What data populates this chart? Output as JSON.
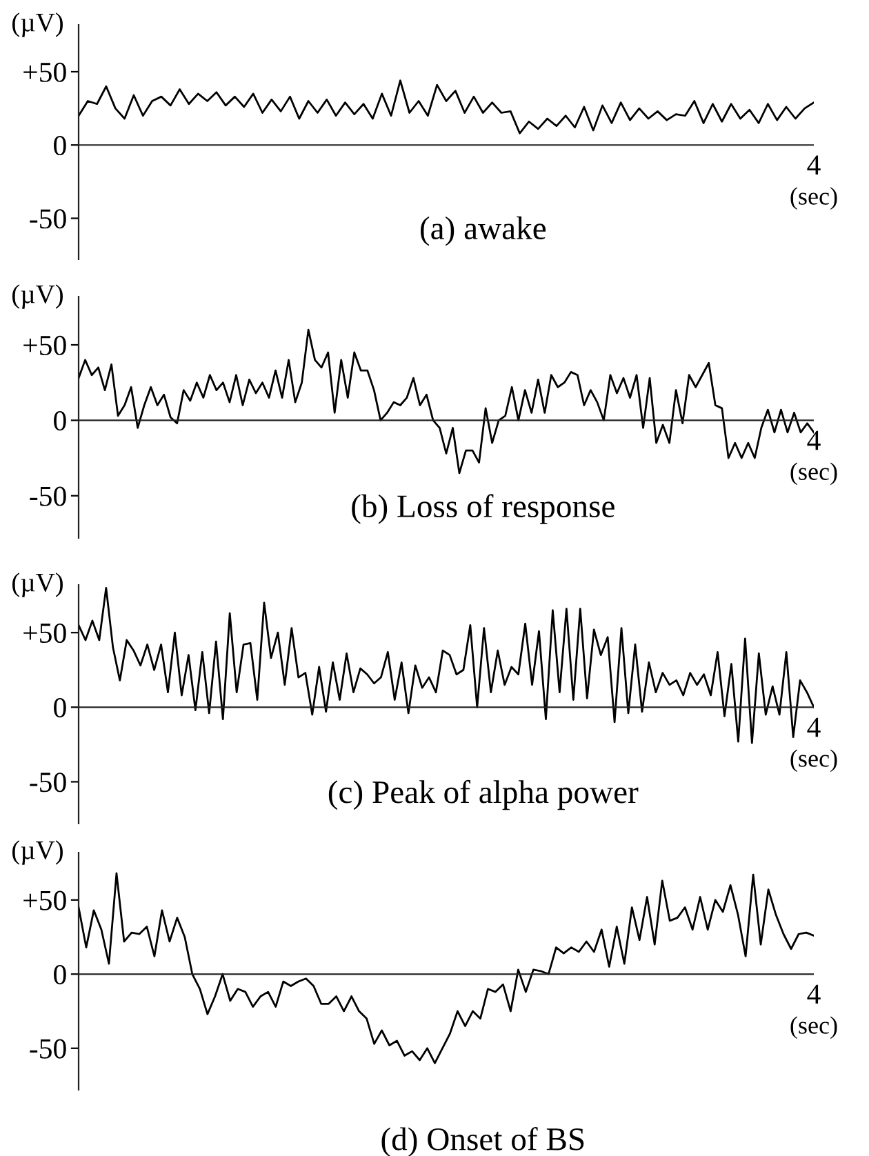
{
  "chart_data": [
    {
      "type": "line",
      "title": "(a) awake",
      "xlabel": "(sec)",
      "ylabel": "(µV)",
      "ylim": [
        -78,
        82
      ],
      "categories": [
        null,
        null,
        null,
        null,
        null,
        null,
        null,
        null,
        null,
        null,
        null,
        null,
        null,
        null,
        null,
        null,
        null,
        null,
        null,
        null,
        null,
        null,
        null,
        null,
        null,
        null,
        null,
        null,
        null,
        null,
        null,
        null,
        null,
        null,
        null,
        null,
        null,
        null,
        null,
        null,
        null,
        null,
        null,
        null,
        null,
        null,
        null,
        null,
        null,
        null,
        null,
        null,
        null,
        null,
        null,
        null,
        null,
        null,
        null,
        null,
        null,
        null,
        null,
        null,
        null,
        null,
        null,
        null,
        null,
        null,
        null,
        null,
        null,
        null,
        null,
        null,
        null,
        null,
        null,
        null,
        null
      ],
      "annotations": [
        "4"
      ],
      "ref_lines": [
        {
          "axis": "y",
          "value": 0,
          "color": "#222222"
        }
      ],
      "yticks": [
        {
          "value": 50,
          "label": "+50"
        },
        {
          "value": 0,
          "label": "0"
        },
        {
          "value": -50,
          "label": "-50"
        }
      ],
      "grid": false,
      "legend": false,
      "marker": "none",
      "line_style": "solid",
      "series": [
        {
          "color": "#000000",
          "values": [
            20,
            30,
            28,
            40,
            25,
            18,
            34,
            20,
            30,
            33,
            27,
            38,
            28,
            35,
            30,
            36,
            27,
            33,
            26,
            35,
            22,
            31,
            23,
            33,
            18,
            30,
            22,
            31,
            20,
            29,
            21,
            28,
            18,
            35,
            20,
            44,
            22,
            30,
            20,
            41,
            30,
            37,
            22,
            33,
            22,
            29,
            22,
            23,
            8,
            16,
            11,
            18,
            13,
            20,
            12,
            26,
            10,
            27,
            15,
            29,
            17,
            25,
            18,
            23,
            17,
            21,
            20,
            30,
            15,
            28,
            16,
            28,
            18,
            24,
            15,
            28,
            17,
            26,
            18,
            25,
            29
          ]
        }
      ]
    },
    {
      "type": "line",
      "title": "(b) Loss of response",
      "xlabel": "(sec)",
      "ylabel": "(µV)",
      "ylim": [
        -78,
        82
      ],
      "categories": [
        null,
        null,
        null,
        null,
        null,
        null,
        null,
        null,
        null,
        null,
        null,
        null,
        null,
        null,
        null,
        null,
        null,
        null,
        null,
        null,
        null,
        null,
        null,
        null,
        null,
        null,
        null,
        null,
        null,
        null,
        null,
        null,
        null,
        null,
        null,
        null,
        null,
        null,
        null,
        null,
        null,
        null,
        null,
        null,
        null,
        null,
        null,
        null,
        null,
        null,
        null,
        null,
        null,
        null,
        null,
        null,
        null,
        null,
        null,
        null,
        null,
        null,
        null,
        null,
        null,
        null,
        null,
        null,
        null,
        null,
        null,
        null,
        null,
        null,
        null,
        null,
        null,
        null,
        null,
        null,
        null,
        null,
        null,
        null,
        null,
        null,
        null,
        null,
        null,
        null,
        null,
        null,
        null,
        null,
        null,
        null,
        null,
        null,
        null,
        null,
        null,
        null,
        null,
        null,
        null,
        null,
        null,
        null,
        null,
        null,
        null,
        null,
        null
      ],
      "annotations": [
        "4"
      ],
      "ref_lines": [
        {
          "axis": "y",
          "value": 0,
          "color": "#222222"
        }
      ],
      "yticks": [
        {
          "value": 50,
          "label": "+50"
        },
        {
          "value": 0,
          "label": "0"
        },
        {
          "value": -50,
          "label": "-50"
        }
      ],
      "grid": false,
      "legend": false,
      "marker": "none",
      "line_style": "solid",
      "series": [
        {
          "color": "#000000",
          "values": [
            28,
            40,
            30,
            35,
            20,
            37,
            3,
            10,
            22,
            -5,
            10,
            22,
            10,
            17,
            2,
            -2,
            20,
            13,
            25,
            15,
            30,
            20,
            25,
            12,
            30,
            10,
            27,
            18,
            25,
            15,
            33,
            15,
            40,
            12,
            25,
            60,
            40,
            35,
            45,
            5,
            40,
            15,
            45,
            33,
            33,
            20,
            0,
            5,
            12,
            10,
            15,
            28,
            10,
            17,
            0,
            -5,
            -22,
            -5,
            -35,
            -20,
            -20,
            -28,
            8,
            -15,
            0,
            3,
            22,
            0,
            20,
            5,
            27,
            5,
            30,
            22,
            25,
            32,
            30,
            10,
            20,
            12,
            0,
            30,
            18,
            28,
            15,
            30,
            -5,
            28,
            -15,
            -3,
            -15,
            20,
            -2,
            30,
            22,
            30,
            38,
            10,
            8,
            -25,
            -15,
            -25,
            -15,
            -25,
            -5,
            7,
            -8,
            7,
            -8,
            5,
            -8,
            -2,
            -8
          ]
        }
      ]
    },
    {
      "type": "line",
      "title": "(c) Peak of alpha power",
      "xlabel": "(sec)",
      "ylabel": "(µV)",
      "ylim": [
        -78,
        82
      ],
      "categories": [
        null,
        null,
        null,
        null,
        null,
        null,
        null,
        null,
        null,
        null,
        null,
        null,
        null,
        null,
        null,
        null,
        null,
        null,
        null,
        null,
        null,
        null,
        null,
        null,
        null,
        null,
        null,
        null,
        null,
        null,
        null,
        null,
        null,
        null,
        null,
        null,
        null,
        null,
        null,
        null,
        null,
        null,
        null,
        null,
        null,
        null,
        null,
        null,
        null,
        null,
        null,
        null,
        null,
        null,
        null,
        null,
        null,
        null,
        null,
        null,
        null,
        null,
        null,
        null,
        null,
        null,
        null,
        null,
        null,
        null,
        null,
        null,
        null,
        null,
        null,
        null,
        null,
        null,
        null,
        null,
        null,
        null,
        null,
        null,
        null,
        null,
        null,
        null,
        null,
        null,
        null,
        null,
        null,
        null,
        null,
        null,
        null,
        null,
        null,
        null,
        null,
        null,
        null,
        null,
        null,
        null,
        null,
        null
      ],
      "annotations": [
        "4"
      ],
      "ref_lines": [
        {
          "axis": "y",
          "value": 0,
          "color": "#222222"
        }
      ],
      "yticks": [
        {
          "value": 50,
          "label": "+50"
        },
        {
          "value": 0,
          "label": "0"
        },
        {
          "value": -50,
          "label": "-50"
        }
      ],
      "grid": false,
      "legend": false,
      "marker": "none",
      "line_style": "solid",
      "series": [
        {
          "color": "#000000",
          "values": [
            55,
            45,
            58,
            45,
            80,
            40,
            18,
            45,
            38,
            28,
            42,
            25,
            42,
            10,
            50,
            8,
            35,
            -2,
            37,
            -4,
            44,
            -8,
            63,
            10,
            42,
            43,
            5,
            70,
            33,
            50,
            15,
            53,
            20,
            23,
            -5,
            27,
            -3,
            30,
            5,
            36,
            10,
            26,
            22,
            16,
            20,
            37,
            5,
            30,
            -4,
            28,
            13,
            20,
            10,
            38,
            35,
            22,
            25,
            55,
            0,
            53,
            10,
            38,
            15,
            27,
            22,
            56,
            15,
            51,
            -8,
            65,
            10,
            66,
            5,
            66,
            6,
            52,
            35,
            47,
            -10,
            53,
            -4,
            42,
            -3,
            30,
            10,
            23,
            15,
            18,
            8,
            23,
            15,
            22,
            8,
            37,
            -6,
            29,
            -23,
            46,
            -24,
            36,
            -5,
            14,
            -5,
            37,
            -20,
            18,
            10,
            0
          ]
        }
      ]
    },
    {
      "type": "line",
      "title": "(d) Onset of BS",
      "xlabel": "(sec)",
      "ylabel": "(µV)",
      "ylim": [
        -78,
        82
      ],
      "categories": [
        null,
        null,
        null,
        null,
        null,
        null,
        null,
        null,
        null,
        null,
        null,
        null,
        null,
        null,
        null,
        null,
        null,
        null,
        null,
        null,
        null,
        null,
        null,
        null,
        null,
        null,
        null,
        null,
        null,
        null,
        null,
        null,
        null,
        null,
        null,
        null,
        null,
        null,
        null,
        null,
        null,
        null,
        null,
        null,
        null,
        null,
        null,
        null,
        null,
        null,
        null,
        null,
        null,
        null,
        null,
        null,
        null,
        null,
        null,
        null,
        null,
        null,
        null,
        null,
        null,
        null,
        null,
        null,
        null,
        null,
        null,
        null,
        null,
        null,
        null,
        null,
        null,
        null,
        null,
        null,
        null,
        null,
        null,
        null,
        null,
        null,
        null,
        null,
        null,
        null,
        null,
        null,
        null,
        null,
        null,
        null,
        null,
        null
      ],
      "annotations": [
        "4"
      ],
      "ref_lines": [
        {
          "axis": "y",
          "value": 0,
          "color": "#222222"
        }
      ],
      "yticks": [
        {
          "value": 50,
          "label": "+50"
        },
        {
          "value": 0,
          "label": "0"
        },
        {
          "value": -50,
          "label": "-50"
        }
      ],
      "grid": false,
      "legend": false,
      "marker": "none",
      "line_style": "solid",
      "series": [
        {
          "color": "#000000",
          "values": [
            45,
            18,
            43,
            30,
            7,
            68,
            22,
            28,
            27,
            32,
            12,
            43,
            22,
            38,
            25,
            0,
            -10,
            -27,
            -15,
            0,
            -18,
            -10,
            -12,
            -22,
            -15,
            -12,
            -22,
            -5,
            -8,
            -5,
            -3,
            -8,
            -20,
            -20,
            -15,
            -25,
            -15,
            -25,
            -30,
            -47,
            -38,
            -48,
            -45,
            -55,
            -52,
            -58,
            -50,
            -60,
            -50,
            -40,
            -25,
            -35,
            -25,
            -30,
            -10,
            -12,
            -7,
            -25,
            3,
            -12,
            3,
            2,
            0,
            18,
            14,
            18,
            15,
            22,
            15,
            30,
            5,
            32,
            7,
            45,
            23,
            52,
            20,
            63,
            36,
            38,
            45,
            30,
            52,
            30,
            50,
            42,
            60,
            40,
            12,
            67,
            20,
            57,
            40,
            27,
            17,
            27,
            28,
            26
          ]
        }
      ]
    }
  ]
}
